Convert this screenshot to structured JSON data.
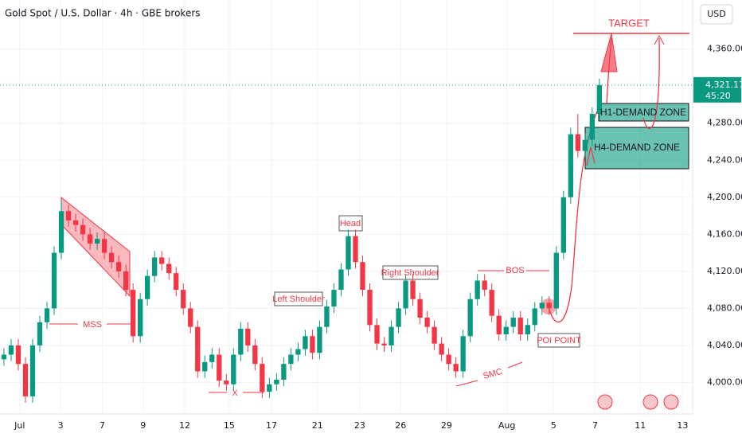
{
  "chart_data": {
    "type": "candlestick",
    "title": "Gold Spot / U.S. Dollar · 4h · GBE brokers",
    "currency": "USD",
    "open": [
      4025,
      4030,
      4040,
      4020,
      3985,
      4040,
      4065,
      4080,
      4140,
      4185,
      4175,
      4170,
      4160,
      4150,
      4155,
      4140,
      4130,
      4120,
      4100,
      4050,
      4090,
      4115,
      4135,
      4128,
      4118,
      4100,
      4080,
      4060,
      4012,
      4022,
      4030,
      4002,
      3998,
      4030,
      4058,
      4040,
      4020,
      3990,
      3998,
      4003,
      4020,
      4030,
      4036,
      4050,
      4032,
      4060,
      4082,
      4100,
      4122,
      4158,
      4130,
      4100,
      4062,
      4042,
      4040,
      4060,
      4080,
      4110,
      4090,
      4070,
      4060,
      4042,
      4030,
      4020,
      4012,
      4050,
      4090,
      4110,
      4100,
      4072,
      4052,
      4060,
      4070,
      4052,
      4062,
      4080,
      4086,
      4080,
      4140,
      4200,
      4268,
      4250,
      4262,
      4290
    ],
    "high": [
      4037,
      4047,
      4047,
      4027,
      4047,
      4072,
      4087,
      4147,
      4198,
      4192,
      4182,
      4177,
      4167,
      4162,
      4162,
      4147,
      4137,
      4127,
      4107,
      4097,
      4122,
      4142,
      4142,
      4135,
      4125,
      4107,
      4087,
      4067,
      4029,
      4037,
      4037,
      4009,
      4037,
      4065,
      4065,
      4047,
      4027,
      4005,
      4010,
      4027,
      4037,
      4043,
      4057,
      4057,
      4067,
      4089,
      4107,
      4129,
      4165,
      4165,
      4137,
      4107,
      4069,
      4049,
      4067,
      4087,
      4117,
      4117,
      4097,
      4077,
      4067,
      4049,
      4037,
      4027,
      4057,
      4097,
      4117,
      4117,
      4107,
      4079,
      4067,
      4077,
      4077,
      4069,
      4087,
      4093,
      4093,
      4147,
      4207,
      4275,
      4290,
      4269,
      4297,
      4328
    ],
    "low": [
      4018,
      4023,
      4013,
      3978,
      3978,
      4033,
      4058,
      4073,
      4133,
      4168,
      4163,
      4153,
      4143,
      4143,
      4133,
      4123,
      4113,
      4093,
      4043,
      4043,
      4083,
      4108,
      4121,
      4111,
      4093,
      4073,
      4053,
      4005,
      4005,
      4015,
      3995,
      3991,
      3991,
      4023,
      4033,
      4013,
      3983,
      3983,
      3991,
      3996,
      4013,
      4023,
      4029,
      4025,
      4025,
      4053,
      4075,
      4093,
      4115,
      4123,
      4093,
      4055,
      4035,
      4033,
      4033,
      4053,
      4073,
      4083,
      4063,
      4053,
      4035,
      4023,
      4013,
      4005,
      4005,
      4043,
      4083,
      4093,
      4065,
      4045,
      4045,
      4053,
      4045,
      4045,
      4055,
      4073,
      4073,
      4073,
      4133,
      4193,
      4243,
      4243,
      4255,
      4283
    ],
    "close": [
      4030,
      4040,
      4020,
      3985,
      4040,
      4065,
      4080,
      4140,
      4185,
      4175,
      4170,
      4160,
      4150,
      4155,
      4140,
      4130,
      4120,
      4100,
      4050,
      4090,
      4115,
      4135,
      4128,
      4118,
      4100,
      4080,
      4060,
      4012,
      4022,
      4030,
      4002,
      3998,
      4030,
      4058,
      4040,
      4020,
      3990,
      3998,
      4003,
      4020,
      4030,
      4036,
      4050,
      4032,
      4060,
      4082,
      4100,
      4122,
      4158,
      4130,
      4100,
      4062,
      4042,
      4040,
      4060,
      4080,
      4110,
      4090,
      4070,
      4060,
      4042,
      4030,
      4020,
      4012,
      4050,
      4090,
      4110,
      4100,
      4072,
      4052,
      4060,
      4070,
      4052,
      4062,
      4080,
      4086,
      4080,
      4140,
      4200,
      4268,
      4250,
      4262,
      4290,
      4321.17
    ],
    "up_color": "#089981",
    "down_color": "#f23645",
    "xlim": [
      -0.55,
      96
    ],
    "xticks": [
      {
        "value": 2.2,
        "label": "Jul"
      },
      {
        "value": 7.9,
        "label": "3"
      },
      {
        "value": 13.7,
        "label": "7"
      },
      {
        "value": 19.4,
        "label": "9"
      },
      {
        "value": 25.2,
        "label": "12"
      },
      {
        "value": 31.4,
        "label": "15"
      },
      {
        "value": 37.3,
        "label": "17"
      },
      {
        "value": 43.7,
        "label": "21"
      },
      {
        "value": 49.6,
        "label": "23"
      },
      {
        "value": 55.3,
        "label": "26"
      },
      {
        "value": 61.7,
        "label": "29"
      },
      {
        "value": 70.1,
        "label": "Aug"
      },
      {
        "value": 76.6,
        "label": "5"
      },
      {
        "value": 82.4,
        "label": "7"
      },
      {
        "value": 88.7,
        "label": "11"
      },
      {
        "value": 94.6,
        "label": "13"
      }
    ],
    "ylim": [
      3966,
      4413
    ],
    "yticks": [
      {
        "value": 4000,
        "label": "4,000.00"
      },
      {
        "value": 4040,
        "label": "4,040.00"
      },
      {
        "value": 4080,
        "label": "4,080.00"
      },
      {
        "value": 4120,
        "label": "4,120.00"
      },
      {
        "value": 4160,
        "label": "4,160.00"
      },
      {
        "value": 4200,
        "label": "4,200.00"
      },
      {
        "value": 4240,
        "label": "4,240.00"
      },
      {
        "value": 4280,
        "label": "4,280.00"
      },
      {
        "value": 4360,
        "label": "4,360.00"
      }
    ],
    "grid": true,
    "last_price": {
      "value": 4321.17,
      "label": "4,321.17"
    },
    "countdown": "45:20",
    "annotations": {
      "target": "TARGET",
      "h1": "H1-DEMAND ZONE",
      "h4": "H4-DEMAND ZONE",
      "head": "Head",
      "left_shoulder": "Left Shoulder",
      "right_shoulder": "Right Shoulder",
      "mss": "MSS",
      "x": "X",
      "bos": "BOS",
      "poi": "POI POINT",
      "smc": "SMC"
    }
  }
}
